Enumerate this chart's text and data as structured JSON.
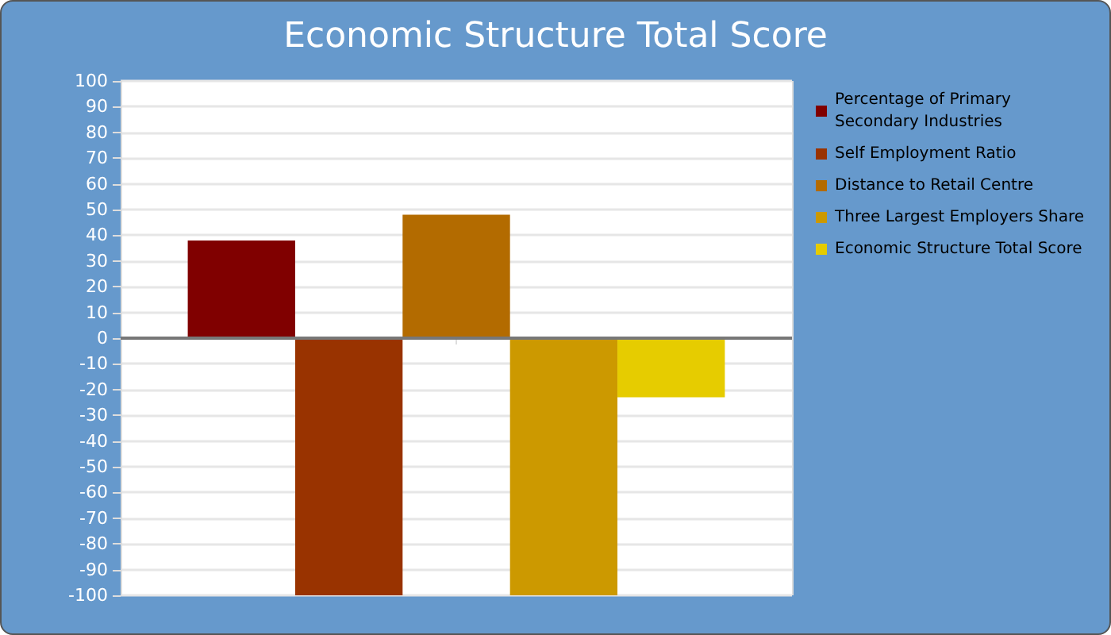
{
  "chart_data": {
    "type": "bar",
    "title": "Economic Structure Total Score",
    "categories": [
      null
    ],
    "series": [
      {
        "name": "Percentage of Primary Secondary Industries",
        "color": "#800000",
        "values": [
          38
        ]
      },
      {
        "name": "Self Employment Ratio",
        "color": "#993300",
        "values": [
          -100
        ]
      },
      {
        "name": "Distance to Retail Centre",
        "color": "#b36b00",
        "values": [
          48
        ]
      },
      {
        "name": "Three Largest Employers Share",
        "color": "#cc9900",
        "values": [
          -100
        ]
      },
      {
        "name": "Economic Structure Total Score",
        "color": "#e6cc00",
        "values": [
          -23
        ]
      }
    ],
    "ylim": [
      -100,
      100
    ],
    "yticks": [
      -100,
      -90,
      -80,
      -70,
      -60,
      -50,
      -40,
      -30,
      -20,
      -10,
      0,
      10,
      20,
      30,
      40,
      50,
      60,
      70,
      80,
      90,
      100
    ],
    "grid": true,
    "legend": "right"
  }
}
